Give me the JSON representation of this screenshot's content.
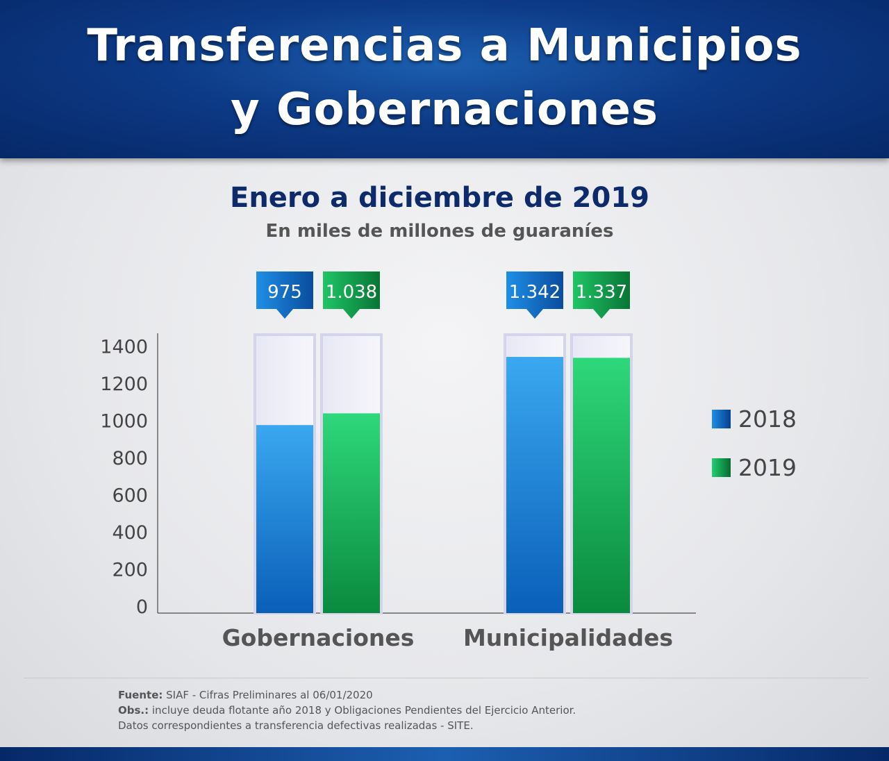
{
  "header": {
    "line1": "Transferencias a Municipios",
    "line2": "y Gobernaciones"
  },
  "chart_data": {
    "type": "bar",
    "title": "Enero a diciembre de 2019",
    "subtitle": "En miles de millones de guaraníes",
    "categories": [
      "Gobernaciones",
      "Municipalidades"
    ],
    "series": [
      {
        "name": "2018",
        "values": [
          975,
          1342
        ],
        "labels": [
          "975",
          "1.342"
        ],
        "color": "#0a6fd0"
      },
      {
        "name": "2019",
        "values": [
          1038,
          1337
        ],
        "labels": [
          "1.038",
          "1.337"
        ],
        "color": "#0aa64c"
      }
    ],
    "ylim": [
      0,
      1500
    ],
    "yticks": [
      0,
      200,
      400,
      600,
      800,
      1000,
      1200,
      1400
    ],
    "legend_position": "right"
  },
  "footer": {
    "fuente_label": "Fuente:",
    "fuente_text": " SIAF - Cifras Preliminares al 06/01/2020",
    "obs_label": "Obs.:",
    "obs_text": " incluye deuda flotante año 2018 y Obligaciones Pendientes del Ejercicio Anterior.",
    "note": "Datos correspondientes a transferencia defectivas realizadas - SITE."
  }
}
